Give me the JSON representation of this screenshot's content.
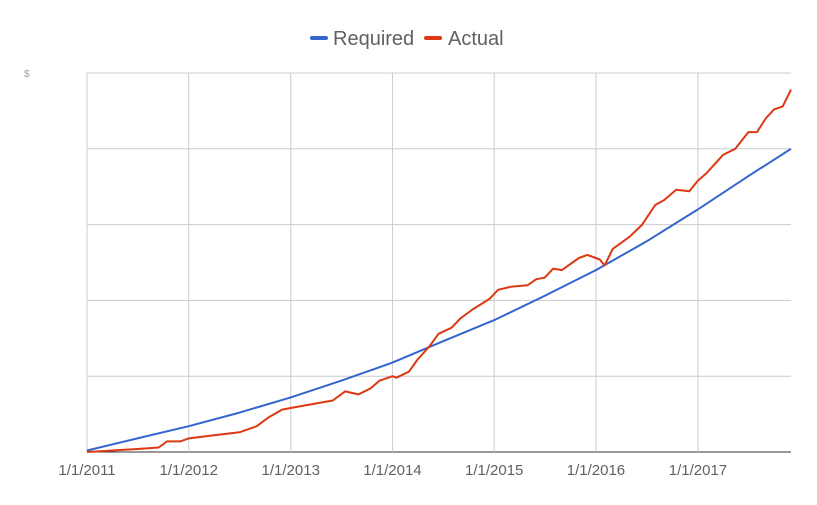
{
  "chart_data": {
    "type": "line",
    "title": "",
    "xlabel": "",
    "ylabel": "",
    "y_axis_glyph": "$",
    "x_tick_labels": [
      "1/1/2011",
      "1/1/2012",
      "1/1/2013",
      "1/1/2014",
      "1/1/2015",
      "1/1/2016",
      "1/1/2017"
    ],
    "xlim": [
      "2011-01-01",
      "2017-12-01"
    ],
    "ylim": [
      0,
      250
    ],
    "y_gridlines": [
      0,
      50,
      100,
      150,
      200,
      250
    ],
    "grid": true,
    "legend_position": "top",
    "series": [
      {
        "name": "Required",
        "color": "#3366cc",
        "points": [
          [
            "2011-01-01",
            1
          ],
          [
            "2011-07-01",
            9
          ],
          [
            "2012-01-01",
            17
          ],
          [
            "2012-07-01",
            26
          ],
          [
            "2013-01-01",
            36
          ],
          [
            "2013-07-01",
            47
          ],
          [
            "2014-01-01",
            59
          ],
          [
            "2014-07-01",
            73
          ],
          [
            "2015-01-01",
            87
          ],
          [
            "2015-07-01",
            103
          ],
          [
            "2016-01-01",
            120
          ],
          [
            "2016-07-01",
            139
          ],
          [
            "2017-01-01",
            160
          ],
          [
            "2017-07-01",
            182
          ],
          [
            "2017-12-01",
            200
          ]
        ]
      },
      {
        "name": "Actual",
        "color": "#dc3912",
        "points": [
          [
            "2011-01-01",
            0
          ],
          [
            "2011-04-01",
            1
          ],
          [
            "2011-07-01",
            2
          ],
          [
            "2011-09-15",
            3
          ],
          [
            "2011-10-15",
            7
          ],
          [
            "2011-12-01",
            7
          ],
          [
            "2012-01-01",
            9
          ],
          [
            "2012-04-01",
            11
          ],
          [
            "2012-07-01",
            13
          ],
          [
            "2012-09-01",
            17
          ],
          [
            "2012-10-15",
            23
          ],
          [
            "2012-12-01",
            28
          ],
          [
            "2013-01-01",
            29
          ],
          [
            "2013-04-01",
            32
          ],
          [
            "2013-06-01",
            34
          ],
          [
            "2013-07-15",
            40
          ],
          [
            "2013-09-01",
            38
          ],
          [
            "2013-10-15",
            42
          ],
          [
            "2013-11-15",
            47
          ],
          [
            "2014-01-01",
            50
          ],
          [
            "2014-01-15",
            49
          ],
          [
            "2014-03-01",
            53
          ],
          [
            "2014-04-01",
            61
          ],
          [
            "2014-05-15",
            70
          ],
          [
            "2014-06-15",
            78
          ],
          [
            "2014-08-01",
            82
          ],
          [
            "2014-09-01",
            88
          ],
          [
            "2014-10-15",
            94
          ],
          [
            "2014-12-15",
            101
          ],
          [
            "2015-01-15",
            107
          ],
          [
            "2015-03-01",
            109
          ],
          [
            "2015-05-01",
            110
          ],
          [
            "2015-06-01",
            114
          ],
          [
            "2015-07-01",
            115
          ],
          [
            "2015-08-01",
            121
          ],
          [
            "2015-09-01",
            120
          ],
          [
            "2015-11-01",
            128
          ],
          [
            "2015-12-01",
            130
          ],
          [
            "2016-01-15",
            127
          ],
          [
            "2016-02-01",
            123
          ],
          [
            "2016-03-01",
            134
          ],
          [
            "2016-05-01",
            142
          ],
          [
            "2016-06-15",
            150
          ],
          [
            "2016-08-01",
            163
          ],
          [
            "2016-09-01",
            166
          ],
          [
            "2016-10-15",
            173
          ],
          [
            "2016-12-01",
            172
          ],
          [
            "2017-01-01",
            179
          ],
          [
            "2017-02-01",
            184
          ],
          [
            "2017-04-01",
            196
          ],
          [
            "2017-05-15",
            200
          ],
          [
            "2017-07-01",
            211
          ],
          [
            "2017-08-01",
            211
          ],
          [
            "2017-09-01",
            220
          ],
          [
            "2017-10-01",
            226
          ],
          [
            "2017-11-01",
            228
          ],
          [
            "2017-12-01",
            239
          ]
        ]
      }
    ]
  }
}
